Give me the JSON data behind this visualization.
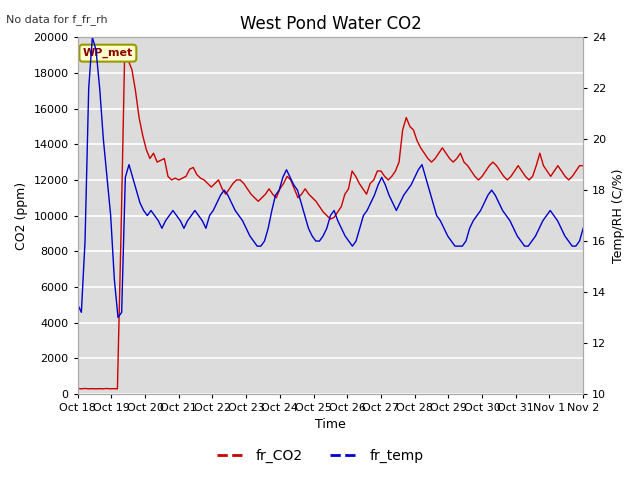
{
  "title": "West Pond Water CO2",
  "no_data_text": "No data for f_fr_rh",
  "xlabel": "Time",
  "ylabel_left": "CO2 (ppm)",
  "ylabel_right": "Temp/RH (C/%)",
  "annotation_label": "WP_met",
  "x_tick_labels": [
    "Oct 18",
    "Oct 19",
    "Oct 20",
    "Oct 21",
    "Oct 22",
    "Oct 23",
    "Oct 24",
    "Oct 25",
    "Oct 26",
    "Oct 27",
    "Oct 28",
    "Oct 29",
    "Oct 30",
    "Oct 31",
    "Nov 1",
    "Nov 2"
  ],
  "ylim_left": [
    0,
    20000
  ],
  "ylim_right": [
    10,
    24
  ],
  "yticks_left": [
    0,
    2000,
    4000,
    6000,
    8000,
    10000,
    12000,
    14000,
    16000,
    18000,
    20000
  ],
  "yticks_right": [
    10,
    12,
    14,
    16,
    18,
    20,
    22,
    24
  ],
  "background_color": "#dcdcdc",
  "grid_color": "#ffffff",
  "co2_color": "#cc0000",
  "temp_color": "#0000cc",
  "legend_entries": [
    "fr_CO2",
    "fr_temp"
  ],
  "co2_data": [
    300,
    280,
    300,
    280,
    290,
    280,
    290,
    280,
    300,
    280,
    290,
    280,
    9000,
    19000,
    18700,
    18200,
    17000,
    15500,
    14500,
    13700,
    13200,
    13500,
    13000,
    13100,
    13200,
    12200,
    12000,
    12100,
    12000,
    12100,
    12200,
    12600,
    12700,
    12300,
    12100,
    12000,
    11800,
    11600,
    11800,
    12000,
    11500,
    11200,
    11500,
    11800,
    12000,
    12000,
    11800,
    11500,
    11200,
    11000,
    10800,
    11000,
    11200,
    11500,
    11200,
    11000,
    11500,
    11800,
    12200,
    12000,
    11500,
    11000,
    11200,
    11500,
    11200,
    11000,
    10800,
    10500,
    10200,
    10000,
    9800,
    9900,
    10200,
    10500,
    11200,
    11500,
    12500,
    12200,
    11800,
    11500,
    11200,
    11800,
    12000,
    12500,
    12500,
    12200,
    12000,
    12200,
    12500,
    13000,
    14800,
    15500,
    15000,
    14800,
    14200,
    13800,
    13500,
    13200,
    13000,
    13200,
    13500,
    13800,
    13500,
    13200,
    13000,
    13200,
    13500,
    13000,
    12800,
    12500,
    12200,
    12000,
    12200,
    12500,
    12800,
    13000,
    12800,
    12500,
    12200,
    12000,
    12200,
    12500,
    12800,
    12500,
    12200,
    12000,
    12200,
    12800,
    13500,
    12800,
    12500,
    12200,
    12500,
    12800,
    12500,
    12200,
    12000,
    12200,
    12500,
    12800,
    12800
  ],
  "temp_data": [
    13.5,
    13.2,
    16.0,
    22.0,
    24.0,
    23.5,
    22.0,
    20.0,
    18.5,
    17.0,
    14.5,
    13.0,
    13.2,
    18.5,
    19.0,
    18.5,
    18.0,
    17.5,
    17.2,
    17.0,
    17.2,
    17.0,
    16.8,
    16.5,
    16.8,
    17.0,
    17.2,
    17.0,
    16.8,
    16.5,
    16.8,
    17.0,
    17.2,
    17.0,
    16.8,
    16.5,
    17.0,
    17.2,
    17.5,
    17.8,
    18.0,
    17.8,
    17.5,
    17.2,
    17.0,
    16.8,
    16.5,
    16.2,
    16.0,
    15.8,
    15.8,
    16.0,
    16.5,
    17.2,
    17.8,
    18.0,
    18.5,
    18.8,
    18.5,
    18.2,
    18.0,
    17.5,
    17.0,
    16.5,
    16.2,
    16.0,
    16.0,
    16.2,
    16.5,
    17.0,
    17.2,
    16.8,
    16.5,
    16.2,
    16.0,
    15.8,
    16.0,
    16.5,
    17.0,
    17.2,
    17.5,
    17.8,
    18.2,
    18.5,
    18.2,
    17.8,
    17.5,
    17.2,
    17.5,
    17.8,
    18.0,
    18.2,
    18.5,
    18.8,
    19.0,
    18.5,
    18.0,
    17.5,
    17.0,
    16.8,
    16.5,
    16.2,
    16.0,
    15.8,
    15.8,
    15.8,
    16.0,
    16.5,
    16.8,
    17.0,
    17.2,
    17.5,
    17.8,
    18.0,
    17.8,
    17.5,
    17.2,
    17.0,
    16.8,
    16.5,
    16.2,
    16.0,
    15.8,
    15.8,
    16.0,
    16.2,
    16.5,
    16.8,
    17.0,
    17.2,
    17.0,
    16.8,
    16.5,
    16.2,
    16.0,
    15.8,
    15.8,
    16.0,
    16.5
  ]
}
